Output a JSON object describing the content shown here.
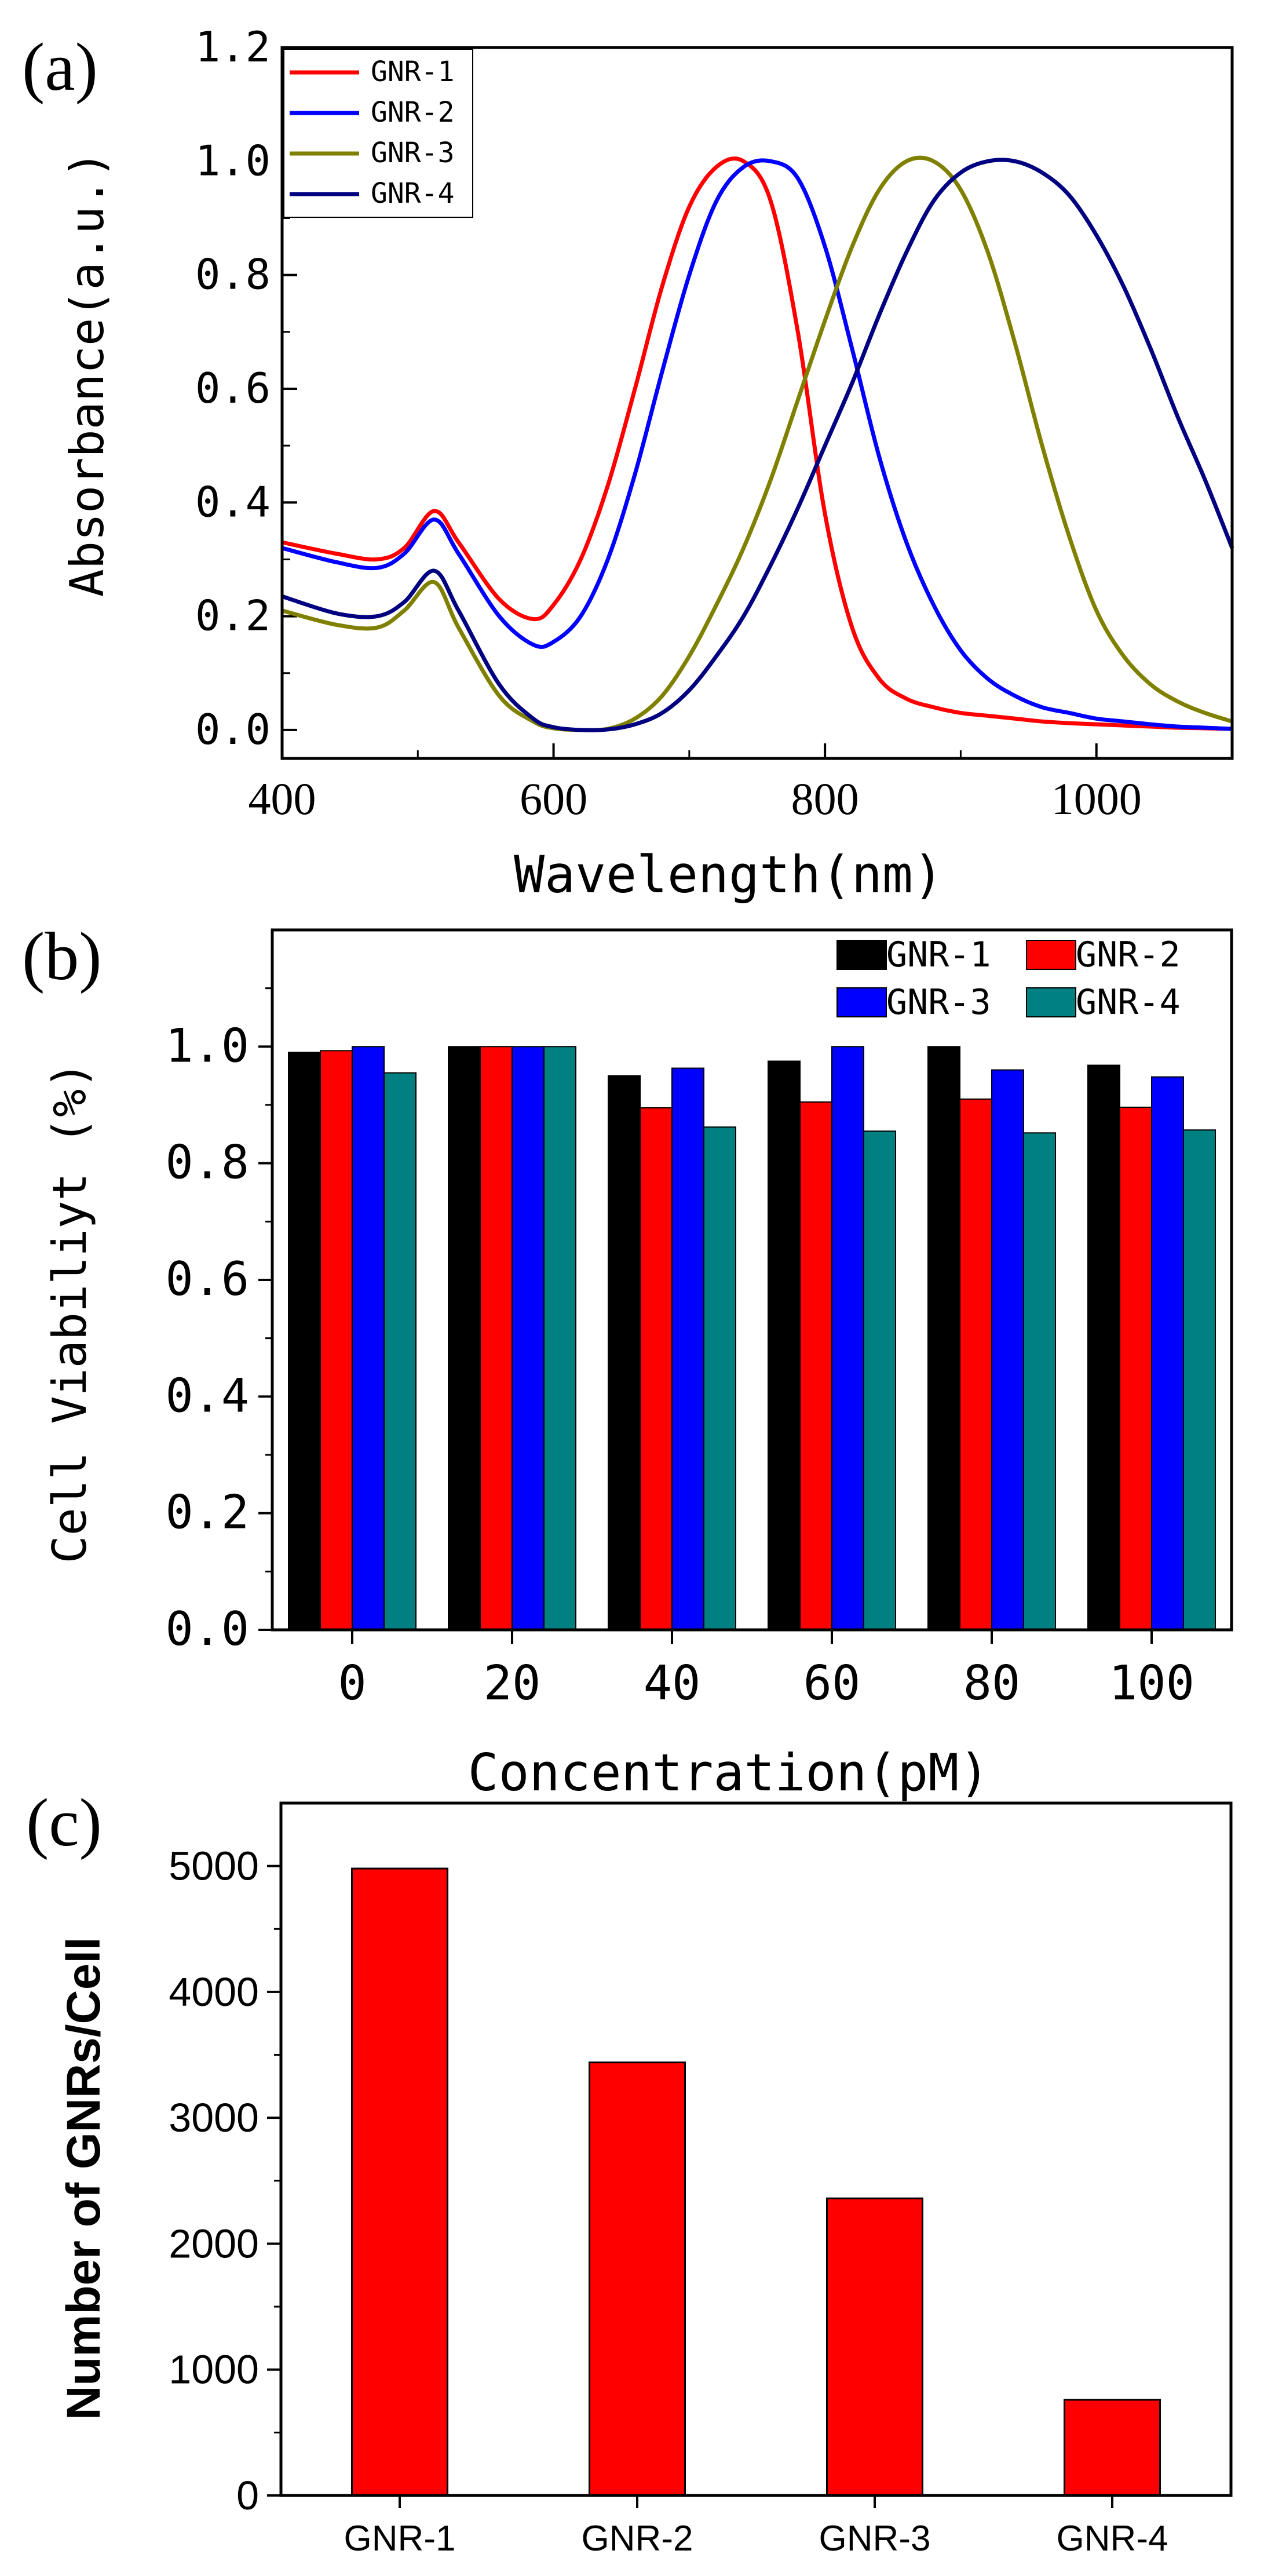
{
  "chart_data": [
    {
      "panel_label": "(a)",
      "type": "line",
      "xlabel": "Wavelength(nm)",
      "ylabel": "Absorbance(a.u.)",
      "xlim": [
        400,
        1100
      ],
      "ylim": [
        -0.05,
        1.2
      ],
      "xticks": [
        400,
        600,
        800,
        1000
      ],
      "xtick_labels": [
        "400",
        "600",
        "800",
        "1000"
      ],
      "yticks": [
        0.0,
        0.2,
        0.4,
        0.6,
        0.8,
        1.0,
        1.2
      ],
      "ytick_labels": [
        "0.0",
        "0.2",
        "0.4",
        "0.6",
        "0.8",
        "1.0",
        "1.2"
      ],
      "legend_position": "top-left",
      "x": [
        400,
        440,
        470,
        490,
        512,
        530,
        560,
        585,
        600,
        620,
        640,
        660,
        680,
        700,
        720,
        740,
        760,
        780,
        800,
        820,
        840,
        860,
        880,
        900,
        920,
        940,
        960,
        980,
        1000,
        1020,
        1040,
        1060,
        1080,
        1100
      ],
      "series": [
        {
          "name": "GNR-1",
          "color": "#ff0000",
          "values": [
            0.33,
            0.31,
            0.3,
            0.32,
            0.385,
            0.33,
            0.23,
            0.195,
            0.22,
            0.3,
            0.43,
            0.6,
            0.78,
            0.92,
            0.99,
            1.0,
            0.93,
            0.7,
            0.38,
            0.18,
            0.09,
            0.055,
            0.04,
            0.03,
            0.025,
            0.02,
            0.015,
            0.012,
            0.01,
            0.008,
            0.006,
            0.004,
            0.003,
            0.002
          ]
        },
        {
          "name": "GNR-2",
          "color": "#0000ff",
          "values": [
            0.32,
            0.295,
            0.285,
            0.31,
            0.37,
            0.31,
            0.2,
            0.15,
            0.155,
            0.2,
            0.3,
            0.45,
            0.63,
            0.8,
            0.93,
            0.99,
            1.0,
            0.97,
            0.85,
            0.67,
            0.48,
            0.33,
            0.22,
            0.14,
            0.09,
            0.06,
            0.04,
            0.03,
            0.02,
            0.015,
            0.01,
            0.006,
            0.004,
            0.002
          ]
        },
        {
          "name": "GNR-3",
          "color": "#808000",
          "values": [
            0.21,
            0.185,
            0.18,
            0.21,
            0.26,
            0.18,
            0.06,
            0.015,
            0.003,
            0.0,
            0.002,
            0.02,
            0.06,
            0.13,
            0.22,
            0.32,
            0.44,
            0.58,
            0.72,
            0.85,
            0.95,
            1.0,
            1.0,
            0.95,
            0.84,
            0.68,
            0.5,
            0.34,
            0.21,
            0.13,
            0.08,
            0.05,
            0.03,
            0.015
          ]
        },
        {
          "name": "GNR-4",
          "color": "#000080",
          "values": [
            0.235,
            0.205,
            0.2,
            0.225,
            0.28,
            0.21,
            0.08,
            0.02,
            0.005,
            0.0,
            0.001,
            0.01,
            0.03,
            0.07,
            0.13,
            0.2,
            0.29,
            0.39,
            0.5,
            0.61,
            0.73,
            0.84,
            0.93,
            0.98,
            1.0,
            1.0,
            0.98,
            0.94,
            0.87,
            0.78,
            0.67,
            0.55,
            0.44,
            0.32
          ]
        }
      ]
    },
    {
      "panel_label": "(b)",
      "type": "bar",
      "xlabel": "Concentration(pM)",
      "ylabel": "Cell Viabiliyt (%)",
      "categories": [
        "0",
        "20",
        "40",
        "60",
        "80",
        "100"
      ],
      "ylim": [
        0,
        1.2
      ],
      "yticks": [
        0.0,
        0.2,
        0.4,
        0.6,
        0.8,
        1.0
      ],
      "ytick_labels": [
        "0.0",
        "0.2",
        "0.4",
        "0.6",
        "0.8",
        "1.0"
      ],
      "legend_position": "top-right",
      "series": [
        {
          "name": "GNR-1",
          "color": "#000000",
          "values": [
            0.99,
            1.0,
            0.95,
            0.975,
            1.0,
            0.968
          ]
        },
        {
          "name": "GNR-2",
          "color": "#ff0000",
          "values": [
            0.993,
            1.0,
            0.895,
            0.905,
            0.91,
            0.896
          ]
        },
        {
          "name": "GNR-3",
          "color": "#0000ff",
          "values": [
            1.0,
            1.0,
            0.963,
            1.0,
            0.96,
            0.948
          ]
        },
        {
          "name": "GNR-4",
          "color": "#008080",
          "values": [
            0.955,
            1.0,
            0.862,
            0.855,
            0.852,
            0.857
          ]
        }
      ]
    },
    {
      "panel_label": "(c)",
      "type": "bar",
      "xlabel": "",
      "ylabel": "Number of GNRs/Cell",
      "categories": [
        "GNR-1",
        "GNR-2",
        "GNR-3",
        "GNR-4"
      ],
      "values": [
        4980,
        3440,
        2360,
        760
      ],
      "color": "#ff0000",
      "ylim": [
        0,
        5500
      ],
      "yticks": [
        0,
        1000,
        2000,
        3000,
        4000,
        5000
      ],
      "ytick_labels": [
        "0",
        "1000",
        "2000",
        "3000",
        "4000",
        "5000"
      ]
    }
  ]
}
